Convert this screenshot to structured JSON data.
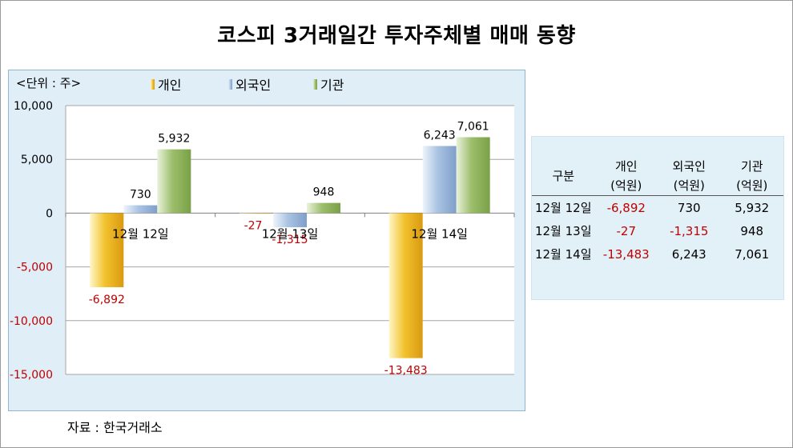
{
  "title": "코스피 3거래일간 투자주체별 매매 동향",
  "source": "자료 : 한국거래소",
  "chart_data": {
    "type": "bar",
    "unit_label": "<단위 : 주>",
    "categories": [
      "12월 12일",
      "12월 13일",
      "12월 14일"
    ],
    "series": [
      {
        "name": "개인",
        "values": [
          -6892,
          -27,
          -13483
        ],
        "labels": [
          "-6,892",
          "-27",
          "-13,483"
        ],
        "color": "#f2c22e"
      },
      {
        "name": "외국인",
        "values": [
          730,
          -1315,
          6243
        ],
        "labels": [
          "730",
          "-1,315",
          "6,243"
        ],
        "color": "#a9c3e2"
      },
      {
        "name": "기관",
        "values": [
          5932,
          948,
          7061
        ],
        "labels": [
          "5,932",
          "948",
          "7,061"
        ],
        "color": "#9dbe6c"
      }
    ],
    "ylim": [
      -15000,
      10000
    ],
    "yticks": [
      10000,
      5000,
      0,
      -5000,
      -10000,
      -15000
    ],
    "ytick_labels": [
      "10,000",
      "5,000",
      "0",
      "-5,000",
      "-10,000",
      "-15,000"
    ],
    "grid": true,
    "legend": "top"
  },
  "table": {
    "headers": [
      {
        "line1": "구분",
        "line2": ""
      },
      {
        "line1": "개인",
        "line2": "(억원)"
      },
      {
        "line1": "외국인",
        "line2": "(억원)"
      },
      {
        "line1": "기관",
        "line2": "(억원)"
      }
    ],
    "rows": [
      {
        "date": "12월 12일",
        "c1": "-6,892",
        "c2": "730",
        "c3": "5,932"
      },
      {
        "date": "12월 13일",
        "c1": "-27",
        "c2": "-1,315",
        "c3": "948"
      },
      {
        "date": "12월 14일",
        "c1": "-13,483",
        "c2": "6,243",
        "c3": "7,061"
      }
    ],
    "negative_color": "#c00000"
  }
}
